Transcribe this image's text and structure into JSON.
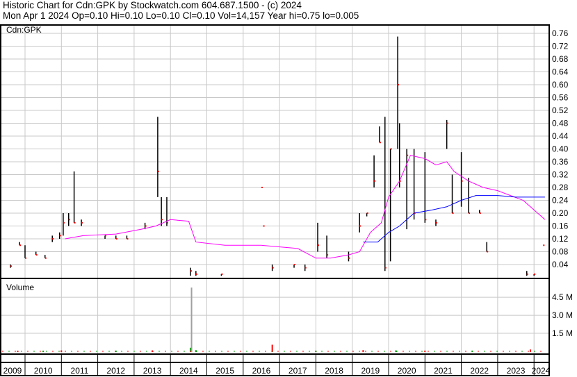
{
  "header": {
    "line1": "Historic Chart for Cdn:GPK by Stockwatch.com 604.687.1500 - (c) 2024",
    "line2": "Mon Apr  1 2024  Op=0.10  Hi=0.10  Lo=0.10  Cl=0.10  Vol=14,157  Year hi=0.75  lo=0.005"
  },
  "chart_data": {
    "type": "line",
    "symbol_label": "Cdn:GPK",
    "volume_label": "Volume",
    "price_axis": {
      "ylim": [
        0,
        0.78
      ],
      "ticks": [
        "0.04",
        "0.08",
        "0.12",
        "0.16",
        "0.20",
        "0.24",
        "0.28",
        "0.32",
        "0.36",
        "0.40",
        "0.44",
        "0.48",
        "0.52",
        "0.56",
        "0.60",
        "0.64",
        "0.68",
        "0.72",
        "0.76"
      ]
    },
    "volume_axis": {
      "ylim": [
        0,
        5.5
      ],
      "unit": "M",
      "ticks": [
        "1.5 M",
        "3.0 M",
        "4.5 M"
      ]
    },
    "x_ticks": [
      "2009",
      "2010",
      "2011",
      "2012",
      "2013",
      "2014",
      "2015",
      "2016",
      "2017",
      "2018",
      "2019",
      "2020",
      "2021",
      "2022",
      "2023",
      "2024"
    ],
    "xlim": [
      "2009-04",
      "2024-04"
    ],
    "grid": true,
    "colors": {
      "bars": "#000000",
      "close": "#ff0000",
      "ma_long": "#ff00ff",
      "ma_short": "#0000ff",
      "volume": "#a0a0a0",
      "volume_up": "#00a000",
      "volume_down": "#ff0000"
    },
    "price_bars": [
      {
        "date": "2009.6",
        "high": 0.04,
        "low": 0.03,
        "close": 0.035
      },
      {
        "date": "2009.85",
        "high": 0.11,
        "low": 0.1,
        "close": 0.1
      },
      {
        "date": "2010.0",
        "high": 0.1,
        "low": 0.06,
        "close": 0.06
      },
      {
        "date": "2010.3",
        "high": 0.08,
        "low": 0.07,
        "close": 0.07
      },
      {
        "date": "2010.55",
        "high": 0.07,
        "low": 0.06,
        "close": 0.06
      },
      {
        "date": "2010.75",
        "high": 0.13,
        "low": 0.11,
        "close": 0.12
      },
      {
        "date": "2010.95",
        "high": 0.14,
        "low": 0.12,
        "close": 0.13
      },
      {
        "date": "2011.05",
        "high": 0.2,
        "low": 0.13,
        "close": 0.17
      },
      {
        "date": "2011.2",
        "high": 0.2,
        "low": 0.16,
        "close": 0.18
      },
      {
        "date": "2011.35",
        "high": 0.33,
        "low": 0.17,
        "close": 0.17
      },
      {
        "date": "2011.55",
        "high": 0.18,
        "low": 0.16,
        "close": 0.17
      },
      {
        "date": "2012.2",
        "high": 0.13,
        "low": 0.12,
        "close": 0.13
      },
      {
        "date": "2012.5",
        "high": 0.13,
        "low": 0.12,
        "close": 0.12
      },
      {
        "date": "2012.8",
        "high": 0.13,
        "low": 0.12,
        "close": 0.12
      },
      {
        "date": "2013.3",
        "high": 0.17,
        "low": 0.15,
        "close": 0.16
      },
      {
        "date": "2013.65",
        "high": 0.5,
        "low": 0.25,
        "close": 0.33
      },
      {
        "date": "2013.75",
        "high": 0.25,
        "low": 0.16,
        "close": 0.18
      },
      {
        "date": "2013.9",
        "high": 0.25,
        "low": 0.16,
        "close": 0.17
      },
      {
        "date": "2014.55",
        "high": 0.03,
        "low": 0.005,
        "close": 0.02
      },
      {
        "date": "2014.7",
        "high": 0.02,
        "low": 0.005,
        "close": 0.01
      },
      {
        "date": "2015.4",
        "high": 0.01,
        "low": 0.005,
        "close": 0.01
      },
      {
        "date": "2016.5",
        "high": 0.28,
        "low": 0.28,
        "close": 0.28
      },
      {
        "date": "2016.55",
        "high": 0.16,
        "low": 0.16,
        "close": 0.16
      },
      {
        "date": "2016.8",
        "high": 0.04,
        "low": 0.02,
        "close": 0.03
      },
      {
        "date": "2017.4",
        "high": 0.04,
        "low": 0.03,
        "close": 0.04
      },
      {
        "date": "2017.7",
        "high": 0.04,
        "low": 0.02,
        "close": 0.03
      },
      {
        "date": "2018.05",
        "high": 0.17,
        "low": 0.08,
        "close": 0.1
      },
      {
        "date": "2018.3",
        "high": 0.13,
        "low": 0.06,
        "close": 0.07
      },
      {
        "date": "2018.9",
        "high": 0.08,
        "low": 0.05,
        "close": 0.06
      },
      {
        "date": "2019.2",
        "high": 0.2,
        "low": 0.14,
        "close": 0.16
      },
      {
        "date": "2019.4",
        "high": 0.2,
        "low": 0.19,
        "close": 0.2
      },
      {
        "date": "2019.6",
        "high": 0.38,
        "low": 0.28,
        "close": 0.3
      },
      {
        "date": "2019.75",
        "high": 0.47,
        "low": 0.42,
        "close": 0.42
      },
      {
        "date": "2019.9",
        "high": 0.5,
        "low": 0.02,
        "close": 0.03
      },
      {
        "date": "2020.05",
        "high": 0.4,
        "low": 0.05,
        "close": 0.4
      },
      {
        "date": "2020.25",
        "high": 0.75,
        "low": 0.4,
        "close": 0.6
      },
      {
        "date": "2020.3",
        "high": 0.48,
        "low": 0.28,
        "close": 0.3
      },
      {
        "date": "2020.5",
        "high": 0.4,
        "low": 0.15,
        "close": 0.38
      },
      {
        "date": "2020.7",
        "high": 0.4,
        "low": 0.18,
        "close": 0.2
      },
      {
        "date": "2021.0",
        "high": 0.39,
        "low": 0.17,
        "close": 0.18
      },
      {
        "date": "2021.3",
        "high": 0.18,
        "low": 0.16,
        "close": 0.17
      },
      {
        "date": "2021.6",
        "high": 0.49,
        "low": 0.4,
        "close": 0.48
      },
      {
        "date": "2021.75",
        "high": 0.32,
        "low": 0.2,
        "close": 0.2
      },
      {
        "date": "2022.0",
        "high": 0.39,
        "low": 0.22,
        "close": 0.3
      },
      {
        "date": "2022.2",
        "high": 0.31,
        "low": 0.2,
        "close": 0.2
      },
      {
        "date": "2022.5",
        "high": 0.21,
        "low": 0.2,
        "close": 0.2
      },
      {
        "date": "2022.7",
        "high": 0.11,
        "low": 0.08,
        "close": 0.08
      },
      {
        "date": "2023.8",
        "high": 0.02,
        "low": 0.005,
        "close": 0.01
      },
      {
        "date": "2024.0",
        "high": 0.01,
        "low": 0.005,
        "close": 0.01
      },
      {
        "date": "2024.25",
        "high": 0.1,
        "low": 0.1,
        "close": 0.1
      }
    ],
    "ma_long": [
      [
        2011.1,
        0.12
      ],
      [
        2011.6,
        0.13
      ],
      [
        2012.5,
        0.135
      ],
      [
        2013.2,
        0.15
      ],
      [
        2013.6,
        0.16
      ],
      [
        2014.0,
        0.18
      ],
      [
        2014.5,
        0.175
      ],
      [
        2014.7,
        0.11
      ],
      [
        2015.5,
        0.1
      ],
      [
        2016.5,
        0.1
      ],
      [
        2017.5,
        0.09
      ],
      [
        2018.0,
        0.06
      ],
      [
        2018.4,
        0.06
      ],
      [
        2018.9,
        0.07
      ],
      [
        2019.2,
        0.08
      ],
      [
        2019.5,
        0.14
      ],
      [
        2019.8,
        0.17
      ],
      [
        2020.0,
        0.25
      ],
      [
        2020.3,
        0.3
      ],
      [
        2020.6,
        0.38
      ],
      [
        2021.0,
        0.37
      ],
      [
        2021.3,
        0.35
      ],
      [
        2021.6,
        0.36
      ],
      [
        2021.8,
        0.33
      ],
      [
        2022.2,
        0.3
      ],
      [
        2022.6,
        0.28
      ],
      [
        2023.0,
        0.27
      ],
      [
        2023.7,
        0.24
      ],
      [
        2024.0,
        0.21
      ],
      [
        2024.3,
        0.18
      ]
    ],
    "ma_short": [
      [
        2019.3,
        0.11
      ],
      [
        2019.7,
        0.11
      ],
      [
        2020.0,
        0.14
      ],
      [
        2020.3,
        0.16
      ],
      [
        2020.7,
        0.2
      ],
      [
        2021.2,
        0.21
      ],
      [
        2021.6,
        0.22
      ],
      [
        2022.0,
        0.24
      ],
      [
        2022.4,
        0.255
      ],
      [
        2023.0,
        0.255
      ],
      [
        2023.5,
        0.25
      ],
      [
        2024.3,
        0.25
      ]
    ],
    "volume": [
      [
        2009.8,
        0.05
      ],
      [
        2010.5,
        0.05
      ],
      [
        2011.0,
        0.08
      ],
      [
        2012.5,
        0.06
      ],
      [
        2013.5,
        0.08
      ],
      [
        2014.55,
        0.3
      ],
      [
        2014.58,
        5.3
      ],
      [
        2014.7,
        0.1
      ],
      [
        2016.8,
        0.55
      ],
      [
        2018.0,
        0.05
      ],
      [
        2019.3,
        0.1
      ],
      [
        2020.2,
        0.08
      ],
      [
        2021.0,
        0.06
      ],
      [
        2022.3,
        0.06
      ],
      [
        2023.9,
        0.15
      ]
    ]
  }
}
